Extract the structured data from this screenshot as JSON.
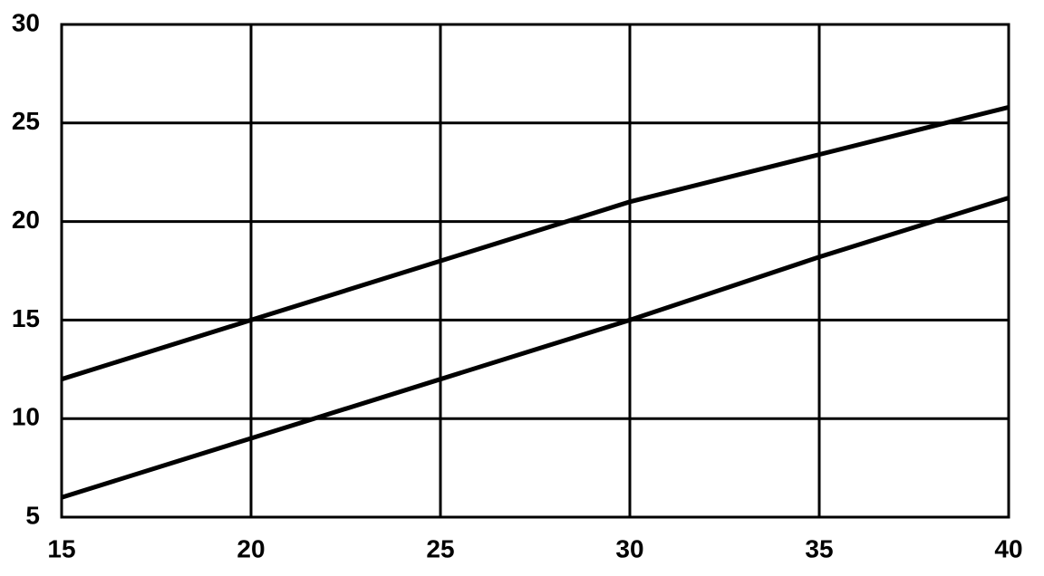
{
  "chart_data": {
    "type": "line",
    "x": [
      15,
      20,
      25,
      30,
      35,
      40
    ],
    "series": [
      {
        "color": "#000000",
        "values": [
          12,
          15,
          18,
          21,
          23.4,
          25.8
        ]
      },
      {
        "color": "#000000",
        "values": [
          6,
          9,
          12,
          15,
          18.2,
          21.2
        ]
      }
    ],
    "xlim": [
      15,
      40
    ],
    "xticks": [
      15,
      20,
      25,
      30,
      35,
      40
    ],
    "ylim": [
      5,
      30
    ],
    "yticks": [
      5,
      10,
      15,
      20,
      25,
      30
    ],
    "grid": true
  }
}
